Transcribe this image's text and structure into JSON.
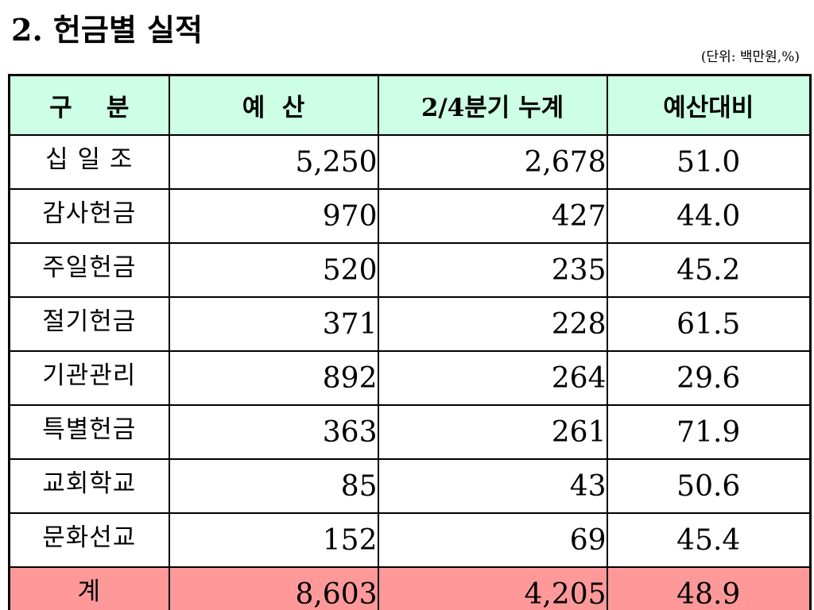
{
  "title": "2. 헌금별 실적",
  "unit_note": "(단위: 백만원,%)",
  "table": {
    "headers": [
      "구    분",
      "예  산",
      "2/4분기 누계",
      "예산대비"
    ],
    "rows": [
      {
        "label": "십 일 조",
        "budget": "5,250",
        "q2_cumulative": "2,678",
        "ratio": "51.0"
      },
      {
        "label": "감사헌금",
        "budget": "970",
        "q2_cumulative": "427",
        "ratio": "44.0"
      },
      {
        "label": "주일헌금",
        "budget": "520",
        "q2_cumulative": "235",
        "ratio": "45.2"
      },
      {
        "label": "절기헌금",
        "budget": "371",
        "q2_cumulative": "228",
        "ratio": "61.5"
      },
      {
        "label": "기관관리",
        "budget": "892",
        "q2_cumulative": "264",
        "ratio": "29.6"
      },
      {
        "label": "특별헌금",
        "budget": "363",
        "q2_cumulative": "261",
        "ratio": "71.9"
      },
      {
        "label": "교회학교",
        "budget": "85",
        "q2_cumulative": "43",
        "ratio": "50.6"
      },
      {
        "label": "문화선교",
        "budget": "152",
        "q2_cumulative": "69",
        "ratio": "45.4"
      }
    ],
    "total": {
      "label": "계",
      "budget": "8,603",
      "q2_cumulative": "4,205",
      "ratio": "48.9"
    }
  },
  "colors": {
    "header_bg": "#ccffe5",
    "total_bg": "#ff9999"
  }
}
